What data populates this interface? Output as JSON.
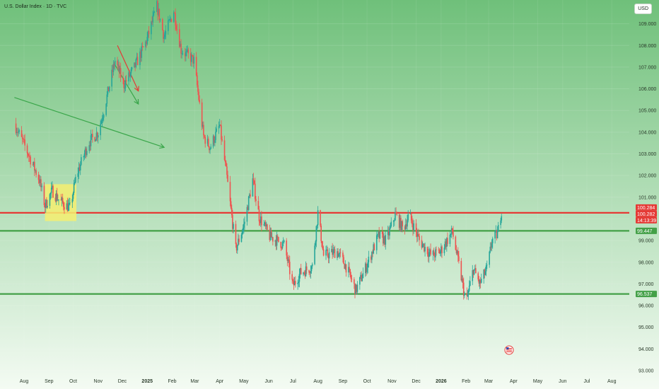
{
  "header": {
    "symbol_title": "U.S. Dollar Index · 1D · TVC",
    "currency_button": "USD"
  },
  "colors": {
    "background_top": "#6fc07a",
    "background_bottom": "#f4fbf3",
    "up": "#26a69a",
    "down": "#ef5350",
    "resistance": "#e53935",
    "support": "#43a047",
    "annotation_arrow": "#3aa64a",
    "highlight_box": "#f6ee70"
  },
  "chart_data": {
    "type": "candlestick",
    "title": "U.S. Dollar Index · 1D · TVC",
    "ylim": [
      93,
      110.6
    ],
    "y_ticks": [
      93,
      94,
      95,
      96,
      97,
      98,
      99,
      100,
      101,
      102,
      103,
      104,
      105,
      106,
      107,
      108,
      109
    ],
    "y_tick_labels": [
      "93.000",
      "94.000",
      "95.000",
      "96.000",
      "97.000",
      "98.000",
      "99.000",
      "100.000",
      "101.000",
      "102.000",
      "103.000",
      "104.000",
      "105.000",
      "106.000",
      "107.000",
      "108.000",
      "109.000"
    ],
    "x_labels": [
      "Aug",
      "Sep",
      "Oct",
      "Nov",
      "Dec",
      "2025",
      "Feb",
      "Mar",
      "Apr",
      "May",
      "Jun",
      "Jul",
      "Aug",
      "Sep",
      "Oct",
      "Nov",
      "Dec",
      "2026",
      "Feb",
      "Mar",
      "Apr",
      "May",
      "Jun",
      "Jul",
      "Aug"
    ],
    "x_label_bold": [
      "2025",
      "2026"
    ],
    "price_path": [
      [
        "2024-07-20",
        104.4
      ],
      [
        "2024-08-05",
        103.1
      ],
      [
        "2024-08-20",
        101.8
      ],
      [
        "2024-08-27",
        100.6
      ],
      [
        "2024-09-05",
        101.3
      ],
      [
        "2024-09-15",
        100.8
      ],
      [
        "2024-09-27",
        100.5
      ],
      [
        "2024-10-05",
        102.0
      ],
      [
        "2024-10-20",
        103.5
      ],
      [
        "2024-11-01",
        104.0
      ],
      [
        "2024-11-08",
        105.0
      ],
      [
        "2024-11-22",
        107.3
      ],
      [
        "2024-12-03",
        106.2
      ],
      [
        "2024-12-15",
        106.9
      ],
      [
        "2024-12-31",
        108.2
      ],
      [
        "2025-01-13",
        109.8
      ],
      [
        "2025-01-22",
        108.4
      ],
      [
        "2025-02-03",
        109.6
      ],
      [
        "2025-02-12",
        107.8
      ],
      [
        "2025-02-28",
        107.3
      ],
      [
        "2025-03-12",
        103.8
      ],
      [
        "2025-03-20",
        103.3
      ],
      [
        "2025-04-01",
        104.3
      ],
      [
        "2025-04-10",
        101.9
      ],
      [
        "2025-04-21",
        98.6
      ],
      [
        "2025-05-01",
        99.7
      ],
      [
        "2025-05-12",
        101.8
      ],
      [
        "2025-05-20",
        100.1
      ],
      [
        "2025-06-02",
        99.2
      ],
      [
        "2025-06-20",
        98.8
      ],
      [
        "2025-07-01",
        96.9
      ],
      [
        "2025-07-10",
        97.5
      ],
      [
        "2025-07-25",
        97.8
      ],
      [
        "2025-08-01",
        100.3
      ],
      [
        "2025-08-08",
        98.3
      ],
      [
        "2025-08-25",
        98.5
      ],
      [
        "2025-09-05",
        97.8
      ],
      [
        "2025-09-17",
        96.7
      ],
      [
        "2025-09-30",
        97.8
      ],
      [
        "2025-10-15",
        99.2
      ],
      [
        "2025-10-25",
        99.0
      ],
      [
        "2025-11-05",
        100.2
      ],
      [
        "2025-11-15",
        99.5
      ],
      [
        "2025-11-22",
        100.2
      ],
      [
        "2025-12-05",
        99.0
      ],
      [
        "2025-12-20",
        98.3
      ],
      [
        "2025-12-31",
        98.5
      ],
      [
        "2026-01-15",
        99.4
      ],
      [
        "2026-01-26",
        97.3
      ],
      [
        "2026-02-01",
        96.1
      ],
      [
        "2026-02-10",
        97.7
      ],
      [
        "2026-02-18",
        97.0
      ],
      [
        "2026-02-28",
        97.8
      ],
      [
        "2026-03-05",
        99.0
      ],
      [
        "2026-03-12",
        99.3
      ],
      [
        "2026-03-17",
        100.4
      ]
    ],
    "last_price": 100.284,
    "levels": [
      {
        "name": "resistance",
        "value": 100.28,
        "color": "#e53935",
        "labels": [
          "100.284",
          "100.282",
          "14:13:39"
        ]
      },
      {
        "name": "support-upper",
        "value": 99.447,
        "color": "#43a047",
        "labels": [
          "99.447"
        ]
      },
      {
        "name": "support-lower",
        "value": 96.537,
        "color": "#43a047",
        "labels": [
          "96.537"
        ]
      }
    ],
    "annotations": [
      {
        "type": "trend-arrow",
        "color": "#3aa64a",
        "from": [
          "2024-07-20",
          105.6
        ],
        "to": [
          "2025-01-22",
          103.3
        ]
      },
      {
        "type": "trend-arrow",
        "color": "#3aa64a",
        "from": [
          "2024-11-22",
          107.1
        ],
        "to": [
          "2024-12-21",
          105.3
        ]
      },
      {
        "type": "trend-arrow",
        "color": "#e53935",
        "from": [
          "2024-11-25",
          108.0
        ],
        "to": [
          "2024-12-21",
          105.9
        ]
      },
      {
        "type": "highlight-box",
        "color": "#f6ee70",
        "from": [
          "2024-08-27",
          101.6
        ],
        "to": [
          "2024-10-05",
          99.9
        ]
      }
    ]
  }
}
